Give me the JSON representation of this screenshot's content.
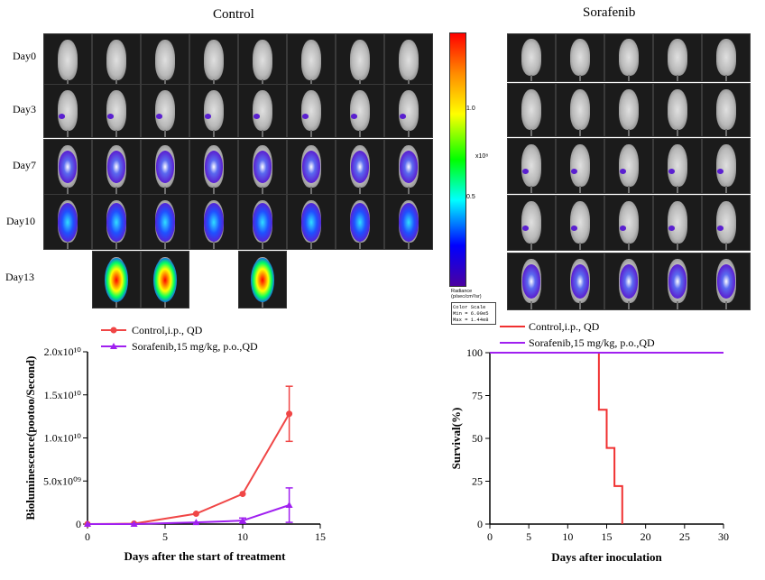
{
  "imaging": {
    "control_title": "Control",
    "sorafenib_title": "Sorafenib",
    "days": [
      "Day0",
      "Day3",
      "Day7",
      "Day10",
      "Day13"
    ],
    "colorbar": {
      "exponent": "x10⁸",
      "ticks": [
        "1.0",
        "0.5"
      ],
      "radiance_label": "Radiance\n(p/sec/cm²/sr)",
      "scale_title": "Color Scale",
      "scale_min": "Min = 6.00e5",
      "scale_max": "Max = 1.44e8"
    },
    "colors": {
      "background": "#1b1b1b",
      "low_signal": "#5a1fd0",
      "high_signal": "#ff0000"
    }
  },
  "bioluminescence_chart": {
    "ylabel": "Bioluminescence(pootoo/Second)",
    "xlabel": "Days after the start of treatment",
    "legend": [
      "Control,i.p., QD",
      "Sorafenib,15 mg/kg, p.o.,QD"
    ],
    "yticks": [
      "0",
      "5.0x10⁰⁹",
      "1.0x10¹⁰",
      "1.5x10¹⁰",
      "2.0x10¹⁰"
    ],
    "xticks": [
      "0",
      "5",
      "10",
      "15"
    ]
  },
  "survival_chart": {
    "ylabel": "Survival(%)",
    "xlabel": "Days after inoculation",
    "legend": [
      "Control,i.p., QD",
      "Sorafenib,15 mg/kg, p.o.,QD"
    ],
    "yticks": [
      "0",
      "25",
      "50",
      "75",
      "100"
    ],
    "xticks": [
      "0",
      "5",
      "10",
      "15",
      "20",
      "25",
      "30"
    ]
  },
  "chart_data": [
    {
      "type": "line",
      "ylabel": "Bioluminescence(pootoo/Second)",
      "xlabel": "Days after the start of treatment",
      "xlim": [
        0,
        15
      ],
      "ylim": [
        0,
        20000000000
      ],
      "series": [
        {
          "name": "Control,i.p., QD",
          "color": "#f04646",
          "marker": "circle",
          "x": [
            0,
            3,
            7,
            10,
            13
          ],
          "y": [
            0,
            50000000,
            1200000000,
            3500000000,
            12800000000
          ],
          "error": [
            0,
            0,
            0,
            0,
            3200000000
          ]
        },
        {
          "name": "Sorafenib,15 mg/kg, p.o.,QD",
          "color": "#a020f0",
          "marker": "triangle",
          "x": [
            0,
            3,
            7,
            10,
            13
          ],
          "y": [
            0,
            0,
            200000000,
            400000000,
            2200000000
          ],
          "error": [
            0,
            0,
            0,
            300000000,
            2000000000
          ]
        }
      ]
    },
    {
      "type": "line",
      "ylabel": "Survival(%)",
      "xlabel": "Days after inoculation",
      "xlim": [
        0,
        30
      ],
      "ylim": [
        0,
        100
      ],
      "series": [
        {
          "name": "Control,i.p., QD",
          "color": "#f03030",
          "x": [
            0,
            14,
            14,
            15,
            15,
            16,
            16,
            17,
            17
          ],
          "y": [
            100,
            100,
            66.7,
            66.7,
            44.4,
            44.4,
            22.2,
            22.2,
            0
          ]
        },
        {
          "name": "Sorafenib,15 mg/kg, p.o.,QD",
          "color": "#a020f0",
          "x": [
            0,
            30
          ],
          "y": [
            100,
            100
          ]
        }
      ]
    }
  ]
}
